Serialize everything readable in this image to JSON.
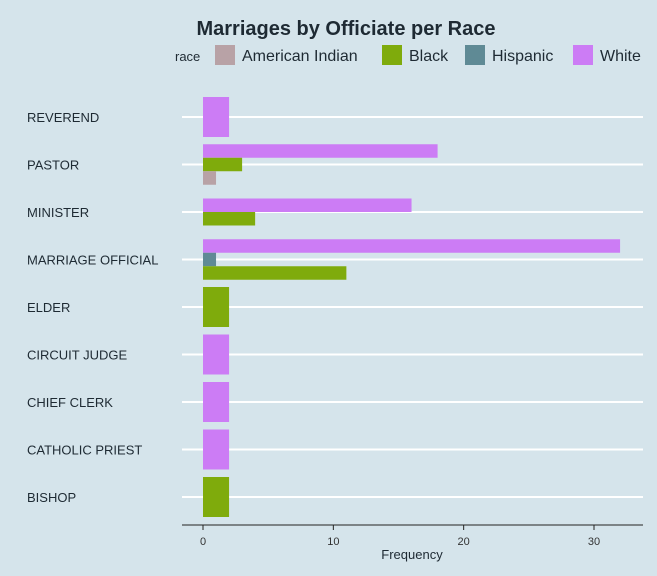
{
  "chart_data": {
    "type": "bar",
    "orientation": "horizontal",
    "title": "Marriages by Officiate per Race",
    "xlabel": "Frequency",
    "ylabel": "",
    "xlim": [
      0,
      33
    ],
    "x_ticks": [
      0,
      10,
      20,
      30
    ],
    "grid": true,
    "legend_title": "race",
    "legend_position": "top",
    "categories": [
      "REVEREND",
      "PASTOR",
      "MINISTER",
      "MARRIAGE OFFICIAL",
      "ELDER",
      "CIRCUIT JUDGE",
      "CHIEF CLERK",
      "CATHOLIC PRIEST",
      "BISHOP"
    ],
    "series": [
      {
        "name": "American Indian",
        "color": "#b8a2a6",
        "values": [
          0,
          1,
          0,
          0,
          0,
          0,
          0,
          0,
          0
        ]
      },
      {
        "name": "Black",
        "color": "#7fab0c",
        "values": [
          0,
          3,
          4,
          11,
          2,
          0,
          0,
          0,
          2
        ]
      },
      {
        "name": "Hispanic",
        "color": "#5f8a95",
        "values": [
          0,
          0,
          0,
          1,
          0,
          0,
          0,
          0,
          0
        ]
      },
      {
        "name": "White",
        "color": "#cc7cf5",
        "values": [
          2,
          18,
          16,
          32,
          0,
          2,
          2,
          2,
          0
        ]
      }
    ]
  }
}
